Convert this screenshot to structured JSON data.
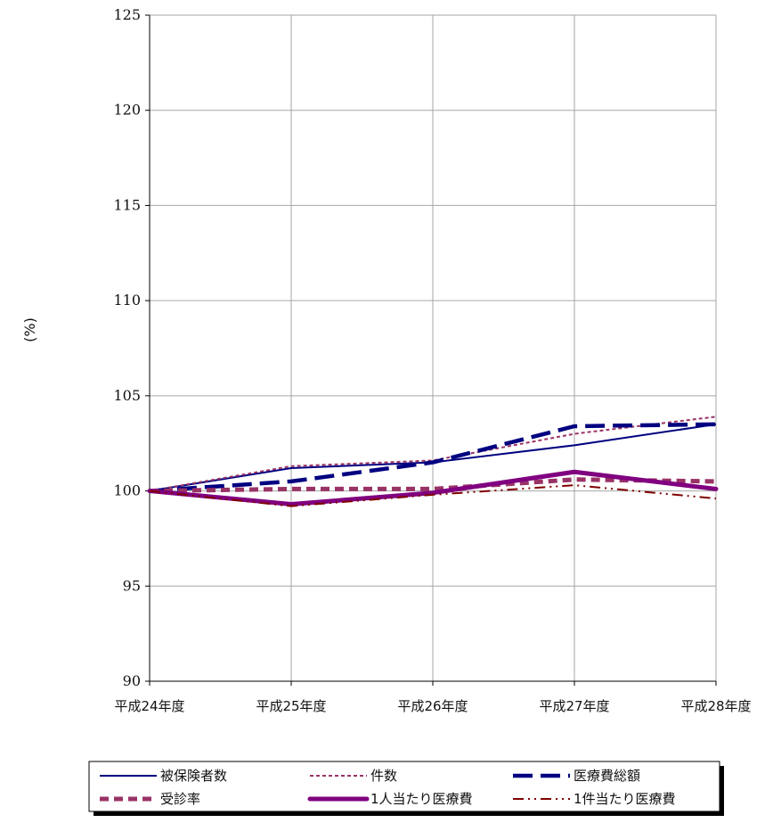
{
  "chart_data": {
    "type": "line",
    "title": "",
    "xlabel": "",
    "ylabel": "(%)",
    "categories": [
      "平成24年度",
      "平成25年度",
      "平成26年度",
      "平成27年度",
      "平成28年度"
    ],
    "ylim": [
      90,
      125
    ],
    "yticks": [
      90,
      95,
      100,
      105,
      110,
      115,
      120,
      125
    ],
    "grid": true,
    "legend_position": "bottom",
    "series": [
      {
        "name": "被保険者数",
        "values": [
          100.0,
          101.2,
          101.5,
          102.4,
          103.5
        ],
        "color": "#000080",
        "line_style": "solid"
      },
      {
        "name": "件数",
        "values": [
          100.0,
          101.3,
          101.6,
          103.0,
          103.9
        ],
        "color": "#993366",
        "line_style": "short-dash"
      },
      {
        "name": "医療費総額",
        "values": [
          100.0,
          100.5,
          101.5,
          103.4,
          103.5
        ],
        "color": "#000080",
        "line_style": "long-dash"
      },
      {
        "name": "受診率",
        "values": [
          100.0,
          100.1,
          100.1,
          100.6,
          100.5
        ],
        "color": "#993366",
        "line_style": "dash-thick"
      },
      {
        "name": "1人当たり医療費",
        "values": [
          100.0,
          99.3,
          99.9,
          101.0,
          100.1
        ],
        "color": "#800080",
        "line_style": "solid-thick"
      },
      {
        "name": "1件当たり医療費",
        "values": [
          100.0,
          99.2,
          99.8,
          100.3,
          99.6
        ],
        "color": "#800000",
        "line_style": "dash-dot-dot"
      }
    ]
  }
}
